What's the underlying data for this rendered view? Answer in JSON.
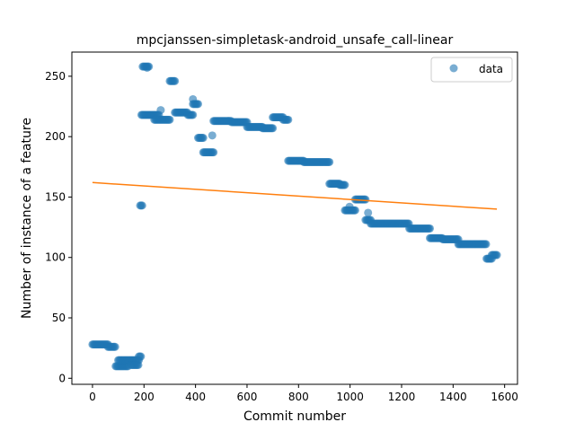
{
  "chart_data": {
    "type": "scatter",
    "title": "mpcjanssen-simpletask-android_unsafe_call-linear",
    "xlabel": "Commit number",
    "ylabel": "Number of instance of a feature",
    "xlim": [
      -80,
      1650
    ],
    "ylim": [
      -5,
      270
    ],
    "xticks": [
      0,
      200,
      400,
      600,
      800,
      1000,
      1200,
      1400,
      1600
    ],
    "yticks": [
      0,
      50,
      100,
      150,
      200,
      250
    ],
    "grid": false,
    "legend": {
      "position": "top-right",
      "entries": [
        "data"
      ]
    },
    "colors": {
      "data": "#1f77b4",
      "fit": "#ff7f0e"
    },
    "segments": [
      [
        0,
        60,
        28
      ],
      [
        60,
        90,
        26
      ],
      [
        90,
        140,
        10
      ],
      [
        100,
        180,
        15
      ],
      [
        150,
        180,
        11
      ],
      [
        180,
        190,
        18
      ],
      [
        185,
        195,
        143
      ],
      [
        195,
        220,
        258
      ],
      [
        190,
        260,
        218
      ],
      [
        240,
        300,
        214
      ],
      [
        300,
        320,
        246
      ],
      [
        320,
        370,
        220
      ],
      [
        370,
        390,
        218
      ],
      [
        390,
        410,
        227
      ],
      [
        410,
        430,
        199
      ],
      [
        430,
        470,
        187
      ],
      [
        470,
        540,
        213
      ],
      [
        540,
        600,
        212
      ],
      [
        600,
        660,
        208
      ],
      [
        660,
        700,
        207
      ],
      [
        700,
        740,
        216
      ],
      [
        740,
        760,
        214
      ],
      [
        760,
        820,
        180
      ],
      [
        820,
        920,
        179
      ],
      [
        920,
        960,
        161
      ],
      [
        960,
        980,
        160
      ],
      [
        980,
        1020,
        139
      ],
      [
        1020,
        1060,
        148
      ],
      [
        1060,
        1080,
        131
      ],
      [
        1080,
        1230,
        128
      ],
      [
        1230,
        1310,
        124
      ],
      [
        1310,
        1360,
        116
      ],
      [
        1360,
        1420,
        115
      ],
      [
        1420,
        1530,
        111
      ],
      [
        1530,
        1550,
        99
      ],
      [
        1550,
        1570,
        102
      ]
    ],
    "outliers": [
      [
        265,
        222
      ],
      [
        465,
        201
      ],
      [
        998,
        142
      ],
      [
        1070,
        137
      ],
      [
        390,
        231
      ],
      [
        212,
        257
      ]
    ],
    "trend": {
      "x": [
        0,
        1570
      ],
      "y": [
        162,
        140
      ]
    }
  }
}
